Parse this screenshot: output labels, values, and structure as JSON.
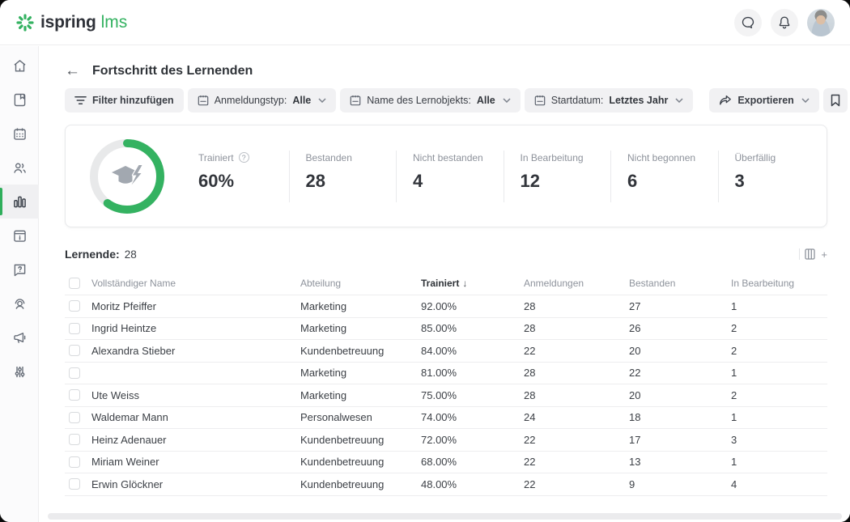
{
  "topbar": {
    "logo": {
      "brand": "ispring",
      "suffix": "lms"
    },
    "icons": [
      "chat-icon",
      "bell-icon",
      "user-avatar"
    ]
  },
  "sidebar": {
    "active_index": 4,
    "items": [
      {
        "name": "home"
      },
      {
        "name": "courses-book"
      },
      {
        "name": "calendar"
      },
      {
        "name": "users"
      },
      {
        "name": "reports-chart",
        "active": true
      },
      {
        "name": "info-board"
      },
      {
        "name": "help-question"
      },
      {
        "name": "support-person"
      },
      {
        "name": "announcements-megaphone"
      },
      {
        "name": "settings-sliders"
      }
    ]
  },
  "header": {
    "back": "←",
    "title": "Fortschritt des Lernenden"
  },
  "filters": {
    "add_filter_label": "Filter hinzufügen",
    "dropdowns": [
      {
        "key": "anmeldungstyp",
        "label": "Anmeldungstyp:",
        "value": "Alle"
      },
      {
        "key": "lernobjekt",
        "label": "Name des Lernobjekts:",
        "value": "Alle"
      },
      {
        "key": "startdatum",
        "label": "Startdatum:",
        "value": "Letztes Jahr"
      }
    ],
    "export_label": "Exportieren",
    "more_label": "•••"
  },
  "stats": {
    "ring_percent": 60,
    "items": [
      {
        "key": "trainiert",
        "label": "Trainiert",
        "value": "60%",
        "help": true
      },
      {
        "key": "bestanden",
        "label": "Bestanden",
        "value": "28"
      },
      {
        "key": "nicht-bestanden",
        "label": "Nicht bestanden",
        "value": "4"
      },
      {
        "key": "in-bearbeitung",
        "label": "In Bearbeitung",
        "value": "12"
      },
      {
        "key": "nicht-begonnen",
        "label": "Nicht begonnen",
        "value": "6"
      },
      {
        "key": "ueberfaellig",
        "label": "Überfällig",
        "value": "3"
      }
    ]
  },
  "table": {
    "title_label": "Lernende:",
    "title_count": "28",
    "columns": [
      {
        "key": "name",
        "label": "Vollständiger Name"
      },
      {
        "key": "department",
        "label": "Abteilung"
      },
      {
        "key": "trained",
        "label": "Trainiert",
        "sorted": true,
        "sort_arrow": "↓"
      },
      {
        "key": "enrollments",
        "label": "Anmeldungen"
      },
      {
        "key": "passed",
        "label": "Bestanden"
      },
      {
        "key": "in_progress",
        "label": "In Bearbeitung"
      }
    ],
    "rows": [
      {
        "name": "Moritz Pfeiffer",
        "department": "Marketing",
        "trained": "92.00%",
        "enrollments": "28",
        "passed": "27",
        "in_progress": "1"
      },
      {
        "name": "Ingrid Heintze",
        "department": "Marketing",
        "trained": "85.00%",
        "enrollments": "28",
        "passed": "26",
        "in_progress": "2"
      },
      {
        "name": "Alexandra Stieber",
        "department": "Kundenbetreuung",
        "trained": "84.00%",
        "enrollments": "22",
        "passed": "20",
        "in_progress": "2"
      },
      {
        "name": "",
        "department": "Marketing",
        "trained": "81.00%",
        "enrollments": "28",
        "passed": "22",
        "in_progress": "1"
      },
      {
        "name": "Ute Weiss",
        "department": "Marketing",
        "trained": "75.00%",
        "enrollments": "28",
        "passed": "20",
        "in_progress": "2"
      },
      {
        "name": "Waldemar Mann",
        "department": "Personalwesen",
        "trained": "74.00%",
        "enrollments": "24",
        "passed": "18",
        "in_progress": "1"
      },
      {
        "name": "Heinz Adenauer",
        "department": "Kundenbetreuung",
        "trained": "72.00%",
        "enrollments": "22",
        "passed": "17",
        "in_progress": "3"
      },
      {
        "name": "Miriam Weiner",
        "department": "Kundenbetreuung",
        "trained": "68.00%",
        "enrollments": "22",
        "passed": "13",
        "in_progress": "1"
      },
      {
        "name": "Erwin Glöckner",
        "department": "Kundenbetreuung",
        "trained": "48.00%",
        "enrollments": "22",
        "passed": "9",
        "in_progress": "4"
      }
    ]
  },
  "colors": {
    "brand_green": "#34b261",
    "ring_track": "#e8e9ea",
    "text_dark": "#2f3338",
    "text_gray": "#8d929b",
    "chip_bg": "#f1f1f3"
  }
}
